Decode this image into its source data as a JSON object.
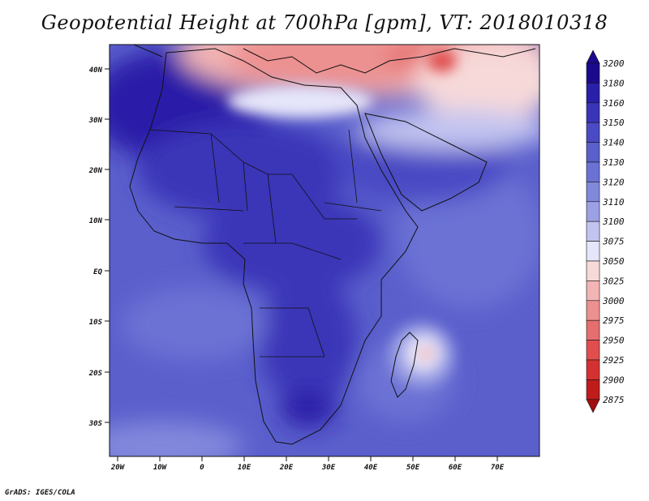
{
  "title": "Geopotential Height at 700hPa [gpm], VT: 2018010318",
  "credit": "GrADS: IGES/COLA",
  "axes": {
    "lat_labels": [
      "40N",
      "30N",
      "20N",
      "10N",
      "EQ",
      "10S",
      "20S",
      "30S"
    ],
    "lon_labels": [
      "20W",
      "10W",
      "0",
      "10E",
      "20E",
      "30E",
      "40E",
      "50E",
      "60E",
      "70E"
    ]
  },
  "colorbar": {
    "levels": [
      "3200",
      "3180",
      "3160",
      "3150",
      "3140",
      "3130",
      "3120",
      "3110",
      "3100",
      "3075",
      "3050",
      "3025",
      "3000",
      "2975",
      "2950",
      "2925",
      "2900",
      "2875"
    ],
    "colors": [
      "#1c0a8c",
      "#2a1fa8",
      "#3a34b8",
      "#4a4ac4",
      "#5a5fcc",
      "#6c72d4",
      "#8288dc",
      "#9ca0e4",
      "#c2c4f0",
      "#e6e6fa",
      "#f7d9d9",
      "#f2b4b4",
      "#ec9090",
      "#e66e6e",
      "#e04e4e",
      "#d43232",
      "#c01c1c",
      "#a01010"
    ]
  }
}
